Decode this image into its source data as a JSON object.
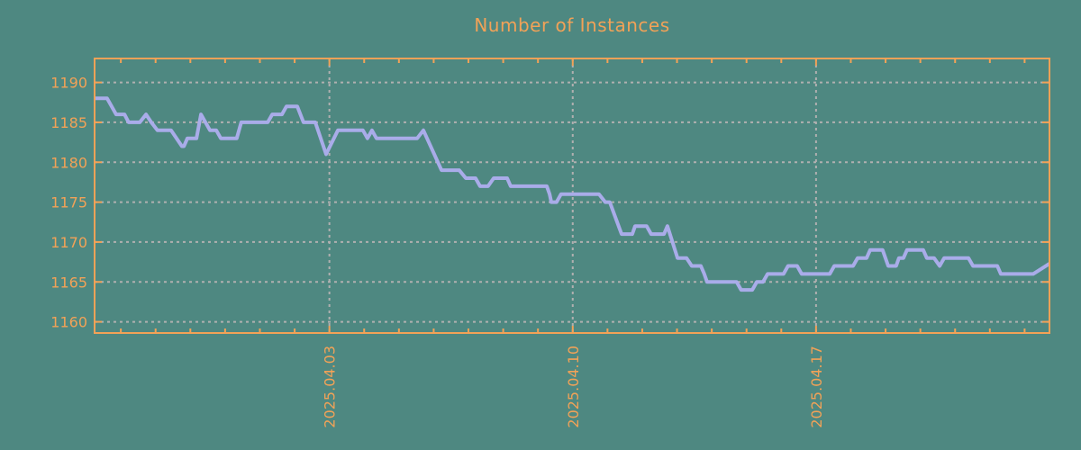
{
  "colors": {
    "background": "#4e8881",
    "accent": "#f2a257",
    "line": "#a9ace9",
    "grid": "#b0b0b0"
  },
  "chart_data": {
    "type": "line",
    "title": "Number of Instances",
    "legend": false,
    "grid": true,
    "x_axis": {
      "unit": "days_from_left_edge",
      "range": [
        0,
        27.47
      ],
      "ticks": [
        {
          "pos": 6.755,
          "label": "2025.04.03"
        },
        {
          "pos": 13.755,
          "label": "2025.04.10"
        },
        {
          "pos": 20.755,
          "label": "2025.04.17"
        }
      ],
      "minor_tick_offset": 0.755,
      "minor_tick_interval": 1,
      "minor_tick_count": 27,
      "label_rotation_deg": -90
    },
    "y_axis": {
      "range": [
        1158.6,
        1193.0
      ],
      "ticks": [
        1160,
        1165,
        1170,
        1175,
        1180,
        1185,
        1190
      ]
    },
    "series": [
      {
        "name": "instances",
        "points": [
          [
            0.0,
            1188
          ],
          [
            0.36,
            1188
          ],
          [
            0.62,
            1186
          ],
          [
            0.86,
            1186
          ],
          [
            0.98,
            1185
          ],
          [
            1.3,
            1185
          ],
          [
            1.48,
            1186
          ],
          [
            1.63,
            1185
          ],
          [
            1.81,
            1184
          ],
          [
            2.2,
            1184
          ],
          [
            2.51,
            1182
          ],
          [
            2.57,
            1182
          ],
          [
            2.67,
            1183
          ],
          [
            2.93,
            1183
          ],
          [
            3.06,
            1186
          ],
          [
            3.32,
            1184
          ],
          [
            3.5,
            1184
          ],
          [
            3.63,
            1183
          ],
          [
            4.09,
            1183
          ],
          [
            4.22,
            1185
          ],
          [
            4.98,
            1185
          ],
          [
            5.11,
            1186
          ],
          [
            5.39,
            1186
          ],
          [
            5.52,
            1187
          ],
          [
            5.83,
            1187
          ],
          [
            6.01,
            1185
          ],
          [
            6.35,
            1185
          ],
          [
            6.66,
            1181
          ],
          [
            7.0,
            1184
          ],
          [
            7.72,
            1184
          ],
          [
            7.85,
            1183
          ],
          [
            7.98,
            1184
          ],
          [
            8.11,
            1183
          ],
          [
            9.28,
            1183
          ],
          [
            9.46,
            1184
          ],
          [
            9.98,
            1179
          ],
          [
            10.49,
            1179
          ],
          [
            10.68,
            1178
          ],
          [
            10.96,
            1178
          ],
          [
            11.09,
            1177
          ],
          [
            11.32,
            1177
          ],
          [
            11.48,
            1178
          ],
          [
            11.87,
            1178
          ],
          [
            11.97,
            1177
          ],
          [
            13.01,
            1177
          ],
          [
            13.09,
            1176
          ],
          [
            13.14,
            1175
          ],
          [
            13.29,
            1175
          ],
          [
            13.42,
            1176
          ],
          [
            14.51,
            1176
          ],
          [
            14.69,
            1175
          ],
          [
            14.82,
            1175
          ],
          [
            15.16,
            1171
          ],
          [
            15.47,
            1171
          ],
          [
            15.55,
            1172
          ],
          [
            15.88,
            1172
          ],
          [
            16.01,
            1171
          ],
          [
            16.38,
            1171
          ],
          [
            16.48,
            1172
          ],
          [
            16.77,
            1168
          ],
          [
            17.03,
            1168
          ],
          [
            17.18,
            1167
          ],
          [
            17.44,
            1167
          ],
          [
            17.54,
            1166
          ],
          [
            17.62,
            1165
          ],
          [
            18.47,
            1165
          ],
          [
            18.6,
            1164
          ],
          [
            18.92,
            1164
          ],
          [
            19.05,
            1165
          ],
          [
            19.23,
            1165
          ],
          [
            19.36,
            1166
          ],
          [
            19.82,
            1166
          ],
          [
            19.95,
            1167
          ],
          [
            20.21,
            1167
          ],
          [
            20.34,
            1166
          ],
          [
            21.15,
            1166
          ],
          [
            21.28,
            1167
          ],
          [
            21.82,
            1167
          ],
          [
            21.95,
            1168
          ],
          [
            22.21,
            1168
          ],
          [
            22.31,
            1169
          ],
          [
            22.67,
            1169
          ],
          [
            22.83,
            1167
          ],
          [
            23.06,
            1167
          ],
          [
            23.14,
            1168
          ],
          [
            23.27,
            1168
          ],
          [
            23.37,
            1169
          ],
          [
            23.84,
            1169
          ],
          [
            23.94,
            1168
          ],
          [
            24.15,
            1168
          ],
          [
            24.31,
            1167
          ],
          [
            24.44,
            1168
          ],
          [
            25.14,
            1168
          ],
          [
            25.27,
            1167
          ],
          [
            25.97,
            1167
          ],
          [
            26.07,
            1166
          ],
          [
            27.0,
            1166
          ],
          [
            27.47,
            1167.3
          ]
        ]
      }
    ]
  }
}
